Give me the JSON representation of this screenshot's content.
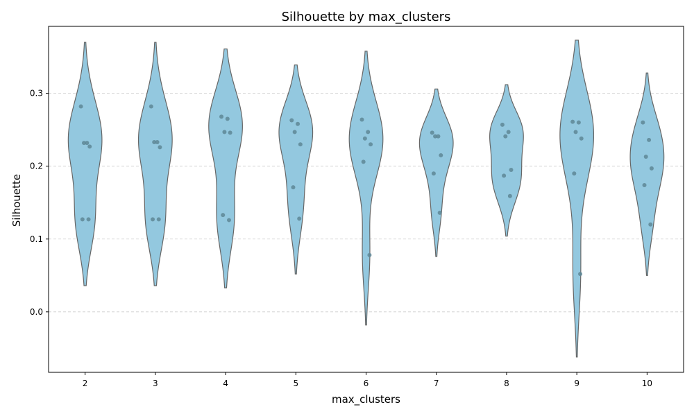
{
  "chart_data": {
    "type": "violin",
    "title": "Silhouette by max_clusters",
    "xlabel": "max_clusters",
    "ylabel": "Silhouette",
    "ylim": [
      -0.083,
      0.392
    ],
    "yticks": [
      "0.0",
      "0.1",
      "0.2",
      "0.3"
    ],
    "grid": "y-dashed",
    "colors": {
      "fill": "#93c8df",
      "edge": "#666666",
      "points": "#5e8797",
      "grid": "#cccccc"
    },
    "categories": [
      "2",
      "3",
      "4",
      "5",
      "6",
      "7",
      "8",
      "9",
      "10"
    ],
    "groups": [
      {
        "category": "2",
        "min": 0.036,
        "max": 0.37,
        "points": [
          0.282,
          0.232,
          0.232,
          0.227,
          0.127,
          0.127
        ]
      },
      {
        "category": "3",
        "min": 0.036,
        "max": 0.37,
        "points": [
          0.282,
          0.233,
          0.233,
          0.226,
          0.127,
          0.127
        ]
      },
      {
        "category": "4",
        "min": 0.033,
        "max": 0.361,
        "points": [
          0.268,
          0.265,
          0.247,
          0.246,
          0.133,
          0.126
        ]
      },
      {
        "category": "5",
        "min": 0.052,
        "max": 0.339,
        "points": [
          0.263,
          0.258,
          0.247,
          0.23,
          0.171,
          0.128
        ]
      },
      {
        "category": "6",
        "min": -0.018,
        "max": 0.358,
        "points": [
          0.264,
          0.247,
          0.238,
          0.23,
          0.206,
          0.078
        ]
      },
      {
        "category": "7",
        "min": 0.076,
        "max": 0.306,
        "points": [
          0.246,
          0.241,
          0.241,
          0.215,
          0.19,
          0.136
        ]
      },
      {
        "category": "8",
        "min": 0.104,
        "max": 0.312,
        "points": [
          0.257,
          0.247,
          0.241,
          0.195,
          0.187,
          0.159
        ]
      },
      {
        "category": "9",
        "min": -0.062,
        "max": 0.373,
        "points": [
          0.261,
          0.26,
          0.247,
          0.238,
          0.19,
          0.052
        ]
      },
      {
        "category": "10",
        "min": 0.05,
        "max": 0.328,
        "points": [
          0.26,
          0.236,
          0.213,
          0.197,
          0.174,
          0.12
        ]
      }
    ]
  }
}
